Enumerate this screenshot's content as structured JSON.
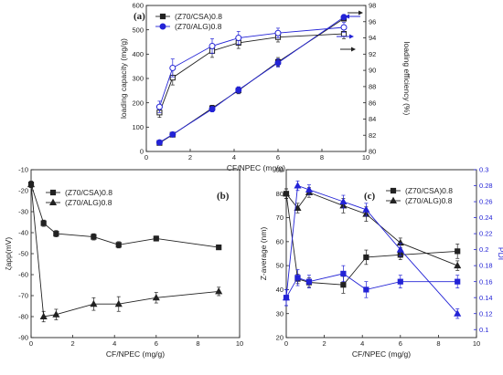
{
  "colors": {
    "black": "#222222",
    "blue": "#2323d6"
  },
  "chart_data": [
    {
      "id": "a",
      "type": "line",
      "panel_label": "(a)",
      "xlabel": "CF/NPEC (mg/g)",
      "ylabel": "loading capacity (mg/g)",
      "y2label": "loading efficiency (%)",
      "xlim": [
        0,
        10
      ],
      "ylim": [
        0,
        600
      ],
      "y2lim": [
        80,
        98
      ],
      "xticks": [
        0,
        2,
        4,
        6,
        8,
        10
      ],
      "yticks": [
        0,
        100,
        200,
        300,
        400,
        500,
        600
      ],
      "y2ticks": [
        80,
        82,
        84,
        86,
        88,
        90,
        92,
        94,
        96,
        98
      ],
      "legend": [
        {
          "label": "(Z70/CSA)0.8",
          "color": "#222222",
          "marker": "square"
        },
        {
          "label": "(Z70/ALG)0.8",
          "color": "#2323d6",
          "marker": "circle"
        }
      ],
      "series": [
        {
          "name": "(Z70/CSA)0.8",
          "axis": "y",
          "filled": true,
          "color": "#222222",
          "x": [
            0.6,
            1.2,
            3.0,
            4.2,
            6.0,
            9.0
          ],
          "y": [
            35,
            69,
            178,
            251,
            368,
            546
          ],
          "err": [
            3,
            5,
            12,
            14,
            18,
            10
          ]
        },
        {
          "name": "(Z70/ALG)0.8",
          "axis": "y",
          "filled": true,
          "color": "#2323d6",
          "x": [
            0.6,
            1.2,
            3.0,
            4.2,
            6.0,
            9.0
          ],
          "y": [
            37,
            70,
            174,
            253,
            364,
            552
          ],
          "err": [
            3,
            5,
            11,
            13,
            17,
            10
          ]
        },
        {
          "name": "(Z70/CSA)0.8",
          "axis": "y2",
          "filled": false,
          "color": "#222222",
          "x": [
            0.6,
            1.2,
            3.0,
            4.2,
            6.0,
            9.0
          ],
          "y": [
            84.8,
            89.1,
            92.4,
            93.4,
            94.1,
            94.5
          ],
          "err": [
            0.6,
            0.9,
            0.8,
            0.7,
            0.6,
            0.6
          ]
        },
        {
          "name": "(Z70/ALG)0.8",
          "axis": "y2",
          "filled": false,
          "color": "#2323d6",
          "x": [
            0.6,
            1.2,
            3.0,
            4.2,
            6.0,
            9.0
          ],
          "y": [
            85.5,
            90.3,
            93.0,
            94.0,
            94.6,
            95.3
          ],
          "err": [
            0.7,
            1.1,
            0.9,
            0.8,
            0.6,
            0.6
          ]
        }
      ]
    },
    {
      "id": "b",
      "type": "line",
      "panel_label": "(b)",
      "xlabel": "CF/NPEC (mg/g)",
      "ylabel": "ζapp(mV)",
      "xlim": [
        0,
        10
      ],
      "ylim": [
        -90,
        -10
      ],
      "xticks": [
        0,
        2,
        4,
        6,
        8,
        10
      ],
      "yticks": [
        -90,
        -80,
        -70,
        -60,
        -50,
        -40,
        -30,
        -20,
        -10
      ],
      "legend": [
        {
          "label": "(Z70/CSA)0.8",
          "color": "#222222",
          "marker": "square"
        },
        {
          "label": "(Z70/ALG)0.8",
          "color": "#222222",
          "marker": "triangle"
        }
      ],
      "series": [
        {
          "name": "(Z70/CSA)0.8",
          "marker": "square",
          "color": "#222222",
          "x": [
            0,
            0.6,
            1.2,
            3.0,
            4.2,
            6.0,
            9.0
          ],
          "y": [
            -17,
            -35.5,
            -40.5,
            -42,
            -45.8,
            -42.8,
            -47
          ],
          "err": [
            1.5,
            1.5,
            1.5,
            1.5,
            1.5,
            1.2,
            1
          ]
        },
        {
          "name": "(Z70/ALG)0.8",
          "marker": "triangle",
          "color": "#222222",
          "x": [
            0,
            0.6,
            1.2,
            3.0,
            4.2,
            6.0,
            9.0
          ],
          "y": [
            -17,
            -80,
            -79,
            -74,
            -74,
            -71,
            -68
          ],
          "err": [
            1.5,
            2.5,
            2.5,
            3,
            3.5,
            2.5,
            2
          ]
        }
      ]
    },
    {
      "id": "c",
      "type": "line",
      "panel_label": "(c)",
      "xlabel": "CF/NPEC (mg/g)",
      "ylabel": "Z-average (nm)",
      "y2label": "PDI",
      "xlim": [
        0,
        10
      ],
      "ylim": [
        20,
        90
      ],
      "y2lim": [
        0.09,
        0.3
      ],
      "xticks": [
        0,
        2,
        4,
        6,
        8,
        10
      ],
      "yticks": [
        20,
        30,
        40,
        50,
        60,
        70,
        80,
        90
      ],
      "y2ticks": [
        0.1,
        0.12,
        0.14,
        0.16,
        0.18,
        0.2,
        0.22,
        0.24,
        0.26,
        0.28,
        0.3
      ],
      "legend": [
        {
          "label": "(Z70/CSA)0.8",
          "color": "#222222",
          "marker": "square"
        },
        {
          "label": "(Z70/ALG)0.8",
          "color": "#222222",
          "marker": "triangle"
        }
      ],
      "series": [
        {
          "name": "(Z70/CSA)0.8",
          "axis": "y",
          "marker": "square",
          "color": "#222222",
          "x": [
            0,
            0.6,
            1.2,
            3.0,
            4.2,
            6.0,
            9.0
          ],
          "y": [
            80,
            44.5,
            43,
            42,
            53.5,
            54.5,
            56
          ],
          "err": [
            2,
            2,
            2,
            3.5,
            3,
            2,
            3
          ]
        },
        {
          "name": "(Z70/ALG)0.8",
          "axis": "y",
          "marker": "triangle",
          "color": "#222222",
          "x": [
            0,
            0.6,
            1.2,
            3.0,
            4.2,
            6.0,
            9.0
          ],
          "y": [
            80,
            74,
            80.5,
            75,
            71.5,
            59.5,
            50
          ],
          "err": [
            2,
            2,
            2,
            3,
            3,
            2,
            2
          ]
        },
        {
          "name": "(Z70/CSA)0.8",
          "axis": "y2",
          "marker": "square",
          "color": "#2323d6",
          "x": [
            0,
            0.6,
            1.2,
            3.0,
            4.2,
            6.0,
            9.0
          ],
          "y": [
            0.14,
            0.165,
            0.16,
            0.17,
            0.15,
            0.16,
            0.16
          ],
          "err": [
            0.01,
            0.01,
            0.008,
            0.01,
            0.01,
            0.008,
            0.008
          ]
        },
        {
          "name": "(Z70/ALG)0.8",
          "axis": "y2",
          "marker": "triangle",
          "color": "#2323d6",
          "x": [
            0,
            0.6,
            1.2,
            3.0,
            4.2,
            6.0,
            9.0
          ],
          "y": [
            0.14,
            0.28,
            0.275,
            0.26,
            0.25,
            0.2,
            0.12
          ],
          "err": [
            0.01,
            0.006,
            0.006,
            0.008,
            0.008,
            0.008,
            0.006
          ]
        }
      ]
    }
  ]
}
